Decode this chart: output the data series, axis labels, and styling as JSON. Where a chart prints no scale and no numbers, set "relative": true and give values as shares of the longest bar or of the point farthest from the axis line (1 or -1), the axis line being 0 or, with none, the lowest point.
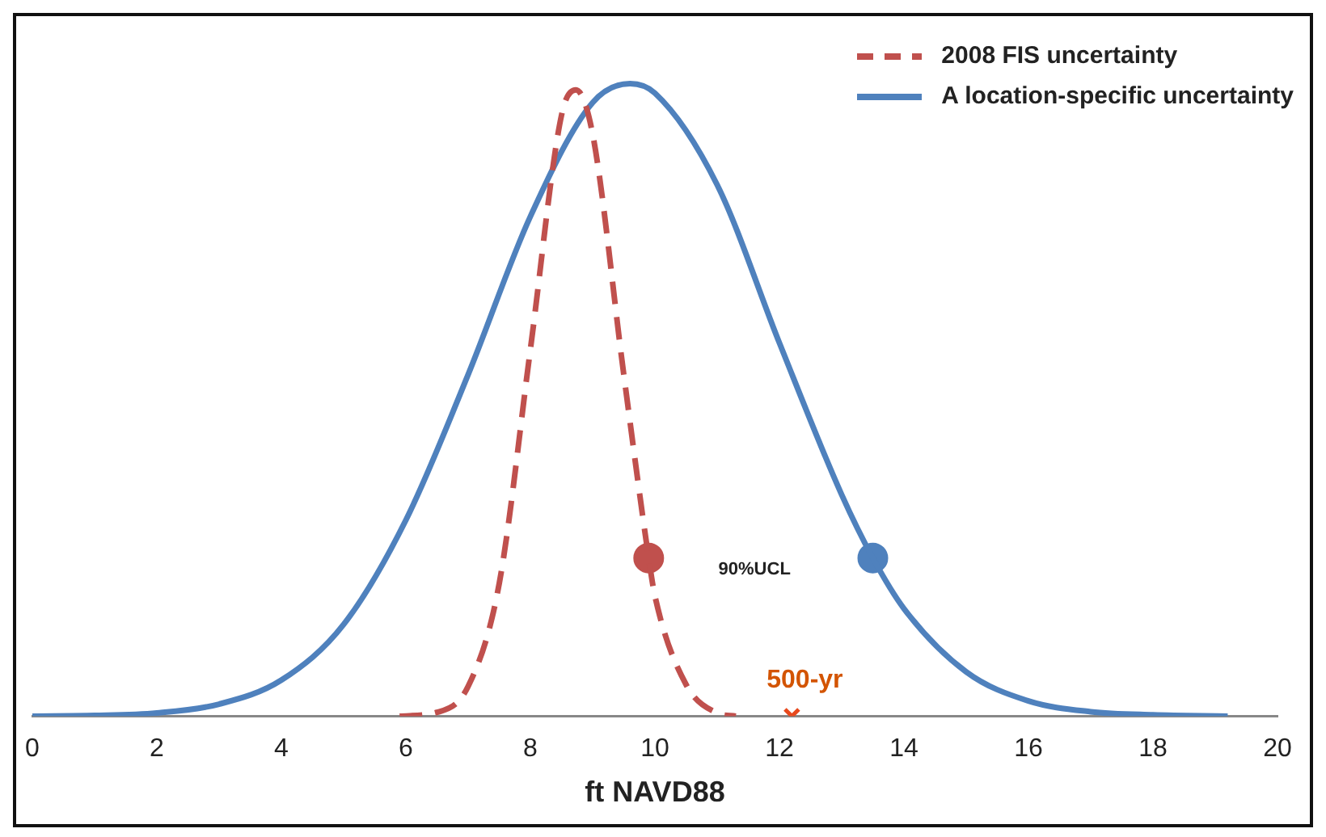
{
  "chart_data": {
    "type": "line",
    "relative": true,
    "xlabel": "ft NAVD88",
    "xlim": [
      0,
      20
    ],
    "xticks": [
      0,
      2,
      4,
      6,
      8,
      10,
      12,
      14,
      16,
      18,
      20
    ],
    "grid": false,
    "legend": "top right",
    "series": [
      {
        "name": "2008 FIS uncertainty",
        "line_style": "dashed",
        "color": "#c0504d",
        "x": [
          5.9,
          6.5,
          7,
          7.5,
          8,
          8.5,
          8.73,
          9,
          9.5,
          9.9,
          10,
          10.5,
          11,
          11.3
        ],
        "values": [
          0,
          0.006,
          0.047,
          0.21,
          0.58,
          0.95,
          0.99,
          0.92,
          0.54,
          0.25,
          0.19,
          0.05,
          0.005,
          0
        ]
      },
      {
        "name": "A location-specific uncertainty",
        "line_style": "solid",
        "color": "#4f81bd",
        "x": [
          0,
          1,
          2,
          3,
          4,
          5,
          6,
          7,
          8,
          9,
          9.6,
          10,
          11,
          12,
          13,
          13.5,
          14,
          15,
          16,
          17,
          18,
          19.2
        ],
        "values": [
          0,
          0.001,
          0.005,
          0.019,
          0.057,
          0.145,
          0.31,
          0.54,
          0.79,
          0.97,
          1,
          0.985,
          0.84,
          0.59,
          0.35,
          0.25,
          0.17,
          0.07,
          0.024,
          0.007,
          0.002,
          0
        ]
      },
      {
        "type": "scatter",
        "marker": "circle",
        "color": "#c0504d",
        "x": [
          9.9
        ],
        "values": [
          0.25
        ]
      },
      {
        "type": "scatter",
        "marker": "circle",
        "color": "#4f81bd",
        "x": [
          13.5
        ],
        "values": [
          0.25
        ]
      },
      {
        "type": "scatter",
        "marker": "cross",
        "color": "#e8491d",
        "x": [
          12.2
        ],
        "values": [
          0
        ]
      }
    ],
    "annotations": [
      "90%UCL",
      {
        "text": "500-yr",
        "x": 12.2,
        "y": 0
      }
    ]
  }
}
